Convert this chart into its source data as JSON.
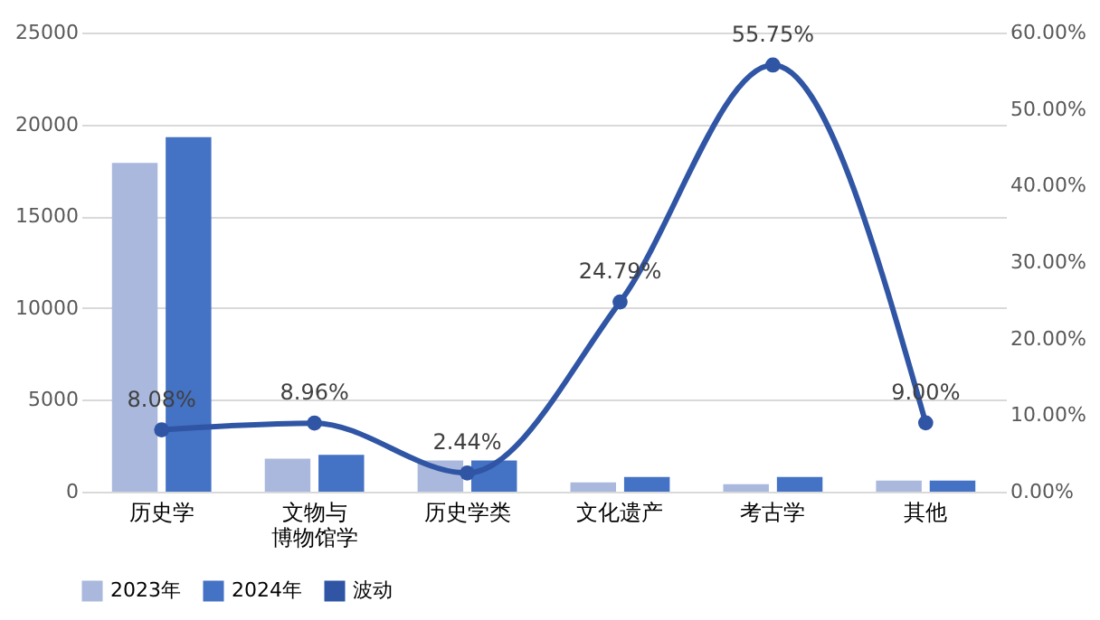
{
  "chart_data": {
    "type": "bar",
    "categories": [
      "历史学",
      "文物与博物馆学",
      "历史学类",
      "文化遗产",
      "考古学",
      "其他"
    ],
    "series": [
      {
        "name": "2023年",
        "color": "#a9b8dc",
        "values": [
          17900,
          1800,
          1700,
          500,
          400,
          600
        ]
      },
      {
        "name": "2024年",
        "color": "#4472c4",
        "values": [
          19300,
          2000,
          1700,
          800,
          800,
          600
        ]
      },
      {
        "name": "波动",
        "type": "line",
        "axis": "y2",
        "color": "#2f55a4",
        "marker": "circle",
        "line_style": "solid",
        "values": [
          8.08,
          8.96,
          2.44,
          24.79,
          55.75,
          9.0
        ],
        "value_labels": [
          "8.08%",
          "8.96%",
          "2.44%",
          "24.79%",
          "55.75%",
          "9.00%"
        ]
      }
    ],
    "ylim": [
      0,
      25000
    ],
    "yticks": [
      0,
      5000,
      10000,
      15000,
      20000,
      25000
    ],
    "y2lim": [
      0,
      60
    ],
    "y2ticks": [
      {
        "value": 0,
        "label": "0.00%"
      },
      {
        "value": 10,
        "label": "10.00%"
      },
      {
        "value": 20,
        "label": "20.00%"
      },
      {
        "value": 30,
        "label": "30.00%"
      },
      {
        "value": 40,
        "label": "40.00%"
      },
      {
        "value": 50,
        "label": "50.00%"
      },
      {
        "value": 60,
        "label": "60.00%"
      }
    ],
    "grid": "y",
    "legend": "bottom"
  }
}
